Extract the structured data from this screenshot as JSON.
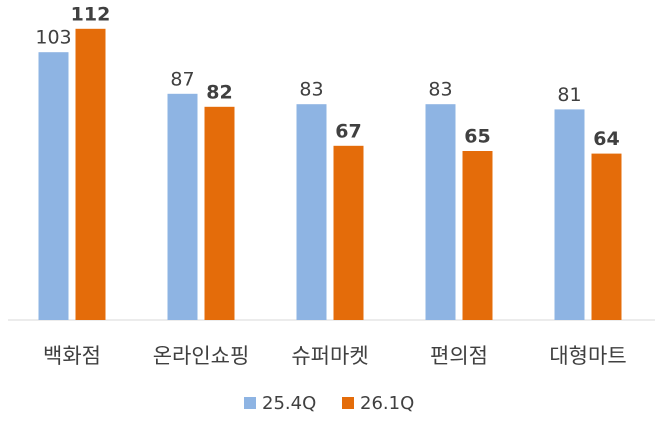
{
  "chart_data": {
    "type": "bar",
    "categories": [
      "백화점",
      "온라인쇼핑",
      "슈퍼마켓",
      "편의점",
      "대형마트"
    ],
    "series": [
      {
        "name": "25.4Q",
        "color": "#8eb4e3",
        "values": [
          103,
          87,
          83,
          83,
          81
        ]
      },
      {
        "name": "26.1Q",
        "color": "#e46c0a",
        "values": [
          112,
          82,
          67,
          65,
          64
        ]
      }
    ],
    "ylim": [
      0,
      120
    ]
  }
}
